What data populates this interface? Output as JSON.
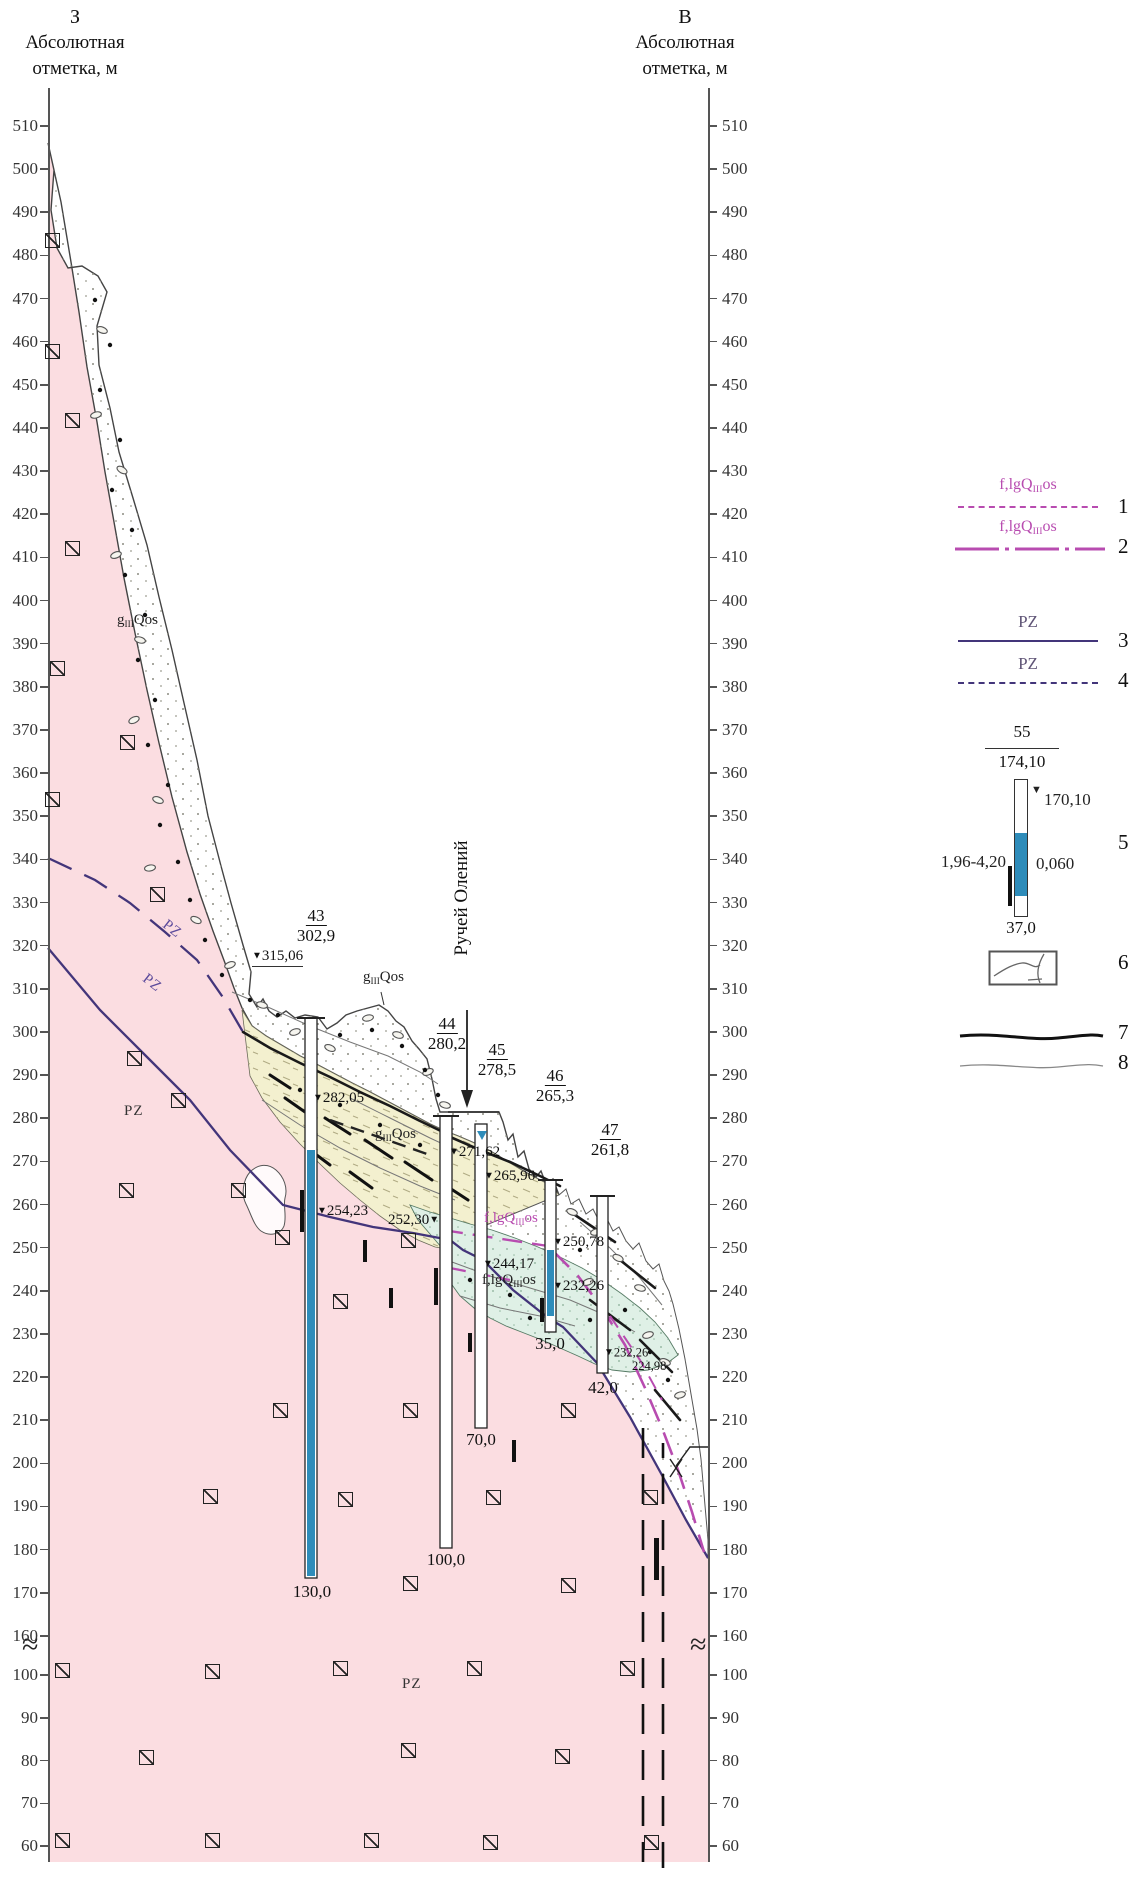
{
  "colors": {
    "bedrock_pink": "#fbdde1",
    "till_yellow": "#f3f0cf",
    "lacustrine_teal": "#dff0e6",
    "water_blue": "#2e8cba",
    "magenta_line": "#b84cb0",
    "pz_line_purple": "#43357a"
  },
  "axes": {
    "left": {
      "direction": "З",
      "title_line1": "Абсолютная",
      "title_line2": "отметка, м"
    },
    "right": {
      "direction": "В",
      "title_line1": "Абсолютная",
      "title_line2": "отметка, м"
    },
    "ticks_upper": [
      "510",
      "500",
      "490",
      "480",
      "470",
      "460",
      "450",
      "440",
      "430",
      "420",
      "410",
      "400",
      "390",
      "380",
      "370",
      "360",
      "350",
      "340",
      "330",
      "320",
      "310",
      "300",
      "290",
      "280",
      "270",
      "260",
      "250",
      "240",
      "230",
      "220",
      "210",
      "200",
      "190",
      "180",
      "170",
      "160"
    ],
    "ticks_lower": [
      "100",
      "90",
      "80",
      "70",
      "60"
    ]
  },
  "section": {
    "creek_label": "Ручей Олений",
    "boreholes": [
      {
        "number": "43",
        "elevation": "302,9",
        "depth": "130,0"
      },
      {
        "number": "44",
        "elevation": "280,2",
        "depth": "100,0"
      },
      {
        "number": "45",
        "elevation": "278,5",
        "depth": "70,0"
      },
      {
        "number": "46",
        "elevation": "265,3",
        "depth": "35,0"
      },
      {
        "number": "47",
        "elevation": "261,8",
        "depth": "42,0"
      }
    ],
    "water_levels": [
      {
        "text": "315,06"
      },
      {
        "text": "282,05"
      },
      {
        "text": "254,23"
      },
      {
        "text": "252,30"
      },
      {
        "text": "271,62"
      },
      {
        "text": "265,96"
      },
      {
        "text": "250,78"
      },
      {
        "text": "244,17"
      },
      {
        "text": "232,26"
      },
      {
        "text": "232,26"
      },
      {
        "text": "224,98"
      }
    ],
    "unit_labels": [
      {
        "pre": "g",
        "sub": "III",
        "post": "Qos"
      },
      {
        "pre": "g",
        "sub": "III",
        "post": "Qos"
      },
      {
        "pre": "g",
        "sub": "III",
        "post": "Qos"
      },
      {
        "pre": "f,lgQ",
        "sub": "III",
        "post": "os"
      },
      {
        "pre": "f,lgQ",
        "sub": "III",
        "post": "os"
      }
    ],
    "pz_labels": [
      "PZ",
      "PZ",
      "PZ",
      "PZ"
    ]
  },
  "legend": {
    "items": [
      {
        "num": "1",
        "label_pre": "f,lgQ",
        "label_sub": "III",
        "label_post": "os"
      },
      {
        "num": "2",
        "label_pre": "f,lgQ",
        "label_sub": "III",
        "label_post": "os"
      },
      {
        "num": "3",
        "label": "PZ"
      },
      {
        "num": "4",
        "label": "PZ"
      },
      {
        "num": "5",
        "borehole_number": "55",
        "elevation": "174,10",
        "water_level": "170,10",
        "interval": "1,96-4,20",
        "value": "0,060",
        "depth": "37,0"
      },
      {
        "num": "6"
      },
      {
        "num": "7"
      },
      {
        "num": "8"
      }
    ]
  }
}
